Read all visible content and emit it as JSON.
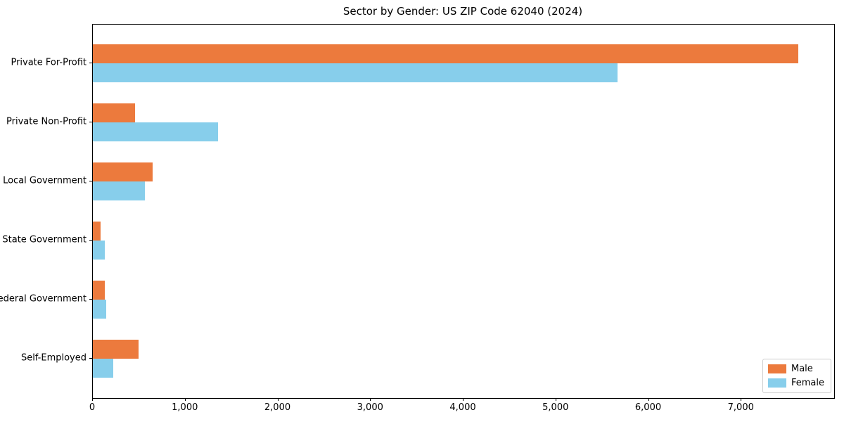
{
  "chart_data": {
    "type": "bar",
    "orientation": "horizontal",
    "title": "Sector by Gender: US ZIP Code 62040 (2024)",
    "categories": [
      "Private For-Profit",
      "Private Non-Profit",
      "Local Government",
      "State Government",
      "Federal Government",
      "Self-Employed"
    ],
    "series": [
      {
        "name": "Male",
        "color": "#ec7a3d",
        "values": [
          7610,
          455,
          645,
          85,
          127,
          495
        ]
      },
      {
        "name": "Female",
        "color": "#87ceeb",
        "values": [
          5660,
          1350,
          560,
          130,
          143,
          220
        ]
      }
    ],
    "xlabel": "",
    "ylabel": "",
    "xlim": [
      0,
      8000
    ],
    "xticks": [
      0,
      1000,
      2000,
      3000,
      4000,
      5000,
      6000,
      7000
    ],
    "xtick_labels": [
      "0",
      "1,000",
      "2,000",
      "3,000",
      "4,000",
      "5,000",
      "6,000",
      "7,000"
    ],
    "grid": false,
    "legend_position": "lower right"
  }
}
